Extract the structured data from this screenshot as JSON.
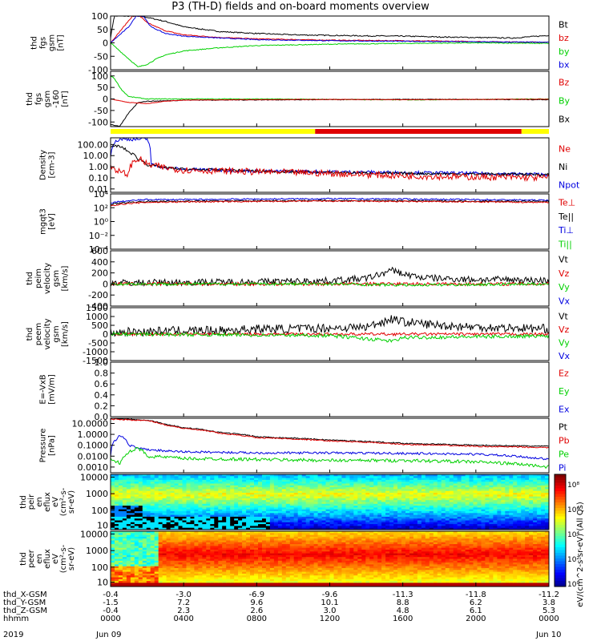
{
  "title": "P3 (TH-D) fields and on-board moments overview",
  "colors": {
    "black": "#000000",
    "red": "#e00000",
    "green": "#00d000",
    "blue": "#0000e0",
    "yellow": "#ffff00",
    "gray": "#808080"
  },
  "chart_data": [
    {
      "type": "line",
      "id": "fgs",
      "ylabel": [
        "thd",
        "fgs",
        "gsm",
        "[nT]"
      ],
      "ylim": [
        -100,
        100
      ],
      "ticks": [
        "100",
        "50",
        "0",
        "-50",
        "-100"
      ],
      "legend": [
        {
          "name": "Bt",
          "color": "black"
        },
        {
          "name": "bz",
          "color": "red"
        },
        {
          "name": "by",
          "color": "green"
        },
        {
          "name": "bx",
          "color": "blue"
        }
      ],
      "series": [
        {
          "name": "Bt",
          "color": "black",
          "t": [
            0,
            0.2,
            0.5,
            0.8,
            1.2,
            1.6,
            2.0,
            3.0,
            4.0,
            6.0,
            8.0,
            10.0,
            12.0,
            14.0,
            16.0,
            18.0,
            20.0,
            22.0,
            24.0
          ],
          "v": [
            20,
            100,
            100,
            100,
            100,
            100,
            95,
            80,
            60,
            42,
            35,
            30,
            28,
            26,
            25,
            22,
            20,
            18,
            28
          ],
          "noise": 2
        },
        {
          "name": "bz",
          "color": "red",
          "t": [
            0,
            1.2,
            1.6,
            2.0,
            3.0,
            4.0,
            6.0,
            8.0,
            12.0,
            16.0,
            20.0,
            24.0
          ],
          "v": [
            0,
            100,
            100,
            75,
            45,
            30,
            20,
            15,
            10,
            8,
            5,
            2
          ],
          "noise": 1.5
        },
        {
          "name": "by",
          "color": "green",
          "t": [
            0,
            1.5,
            2.0,
            2.5,
            3.0,
            4.0,
            6.0,
            8.0,
            12.0,
            16.0,
            20.0,
            24.0
          ],
          "v": [
            0,
            -90,
            -80,
            -60,
            -45,
            -30,
            -18,
            -10,
            -5,
            -2,
            0,
            -2
          ],
          "noise": 1.5
        },
        {
          "name": "bx",
          "color": "blue",
          "t": [
            0,
            1.0,
            1.4,
            1.8,
            2.2,
            3.0,
            4.0,
            6.0,
            8.0,
            12.0,
            16.0,
            20.0,
            24.0
          ],
          "v": [
            0,
            60,
            100,
            100,
            60,
            35,
            25,
            18,
            12,
            8,
            6,
            4,
            2
          ],
          "noise": 1.5
        }
      ]
    },
    {
      "type": "line",
      "id": "fgs-dsl",
      "ylabel": [
        "thd",
        "fgs",
        "gsm",
        "-160",
        "[nT]"
      ],
      "ylim": [
        -120,
        120
      ],
      "ticks": [
        "100",
        "50",
        "0",
        "-50",
        "-100"
      ],
      "tickvals": [
        100,
        50,
        0,
        -50,
        -100
      ],
      "legend": [
        {
          "name": "Bz",
          "color": "red"
        },
        {
          "name": "By",
          "color": "green"
        },
        {
          "name": "Bx",
          "color": "black"
        }
      ],
      "series": [
        {
          "name": "By",
          "color": "green",
          "t": [
            0,
            0.2,
            0.6,
            1.0,
            2.0,
            4.0,
            8.0,
            12.0,
            16.0,
            20.0,
            24.0
          ],
          "v": [
            100,
            90,
            40,
            10,
            0,
            0,
            0,
            -2,
            -4,
            -2,
            0
          ],
          "noise": 1.5
        },
        {
          "name": "Bx",
          "color": "black",
          "t": [
            0,
            0.5,
            1.0,
            1.5,
            2.0,
            3.0,
            4.0,
            8.0,
            12.0,
            16.0,
            20.0,
            24.0
          ],
          "v": [
            -110,
            -120,
            -60,
            -15,
            -10,
            -8,
            -5,
            -4,
            -3,
            -2,
            -2,
            -3
          ],
          "noise": 1.5
        },
        {
          "name": "Bz",
          "color": "red",
          "t": [
            0,
            1.0,
            2.0,
            3.0,
            4.0,
            8.0,
            12.0,
            16.0,
            20.0,
            24.0
          ],
          "v": [
            0,
            -15,
            -20,
            -10,
            -5,
            -3,
            -2,
            -3,
            -2,
            -1
          ],
          "noise": 1
        }
      ]
    },
    {
      "type": "line",
      "id": "density",
      "ylabel": [
        "Density",
        "[cm-3]"
      ],
      "log": true,
      "ylim": [
        0.005,
        400
      ],
      "ticks": [
        "100.00",
        "10.00",
        "1.00",
        "0.10",
        "0.01"
      ],
      "tickvals": [
        100,
        10,
        1,
        0.1,
        0.01
      ],
      "legend": [
        {
          "name": "Ne",
          "color": "red"
        },
        {
          "name": "Ni",
          "color": "black"
        },
        {
          "name": "Npot",
          "color": "blue"
        }
      ],
      "series": [
        {
          "name": "Npot",
          "color": "blue",
          "t": [
            0,
            0.5,
            1.5,
            2.0,
            2.2,
            3.0,
            4.0,
            8.0,
            12.0,
            16.0,
            20.0,
            24.0
          ],
          "v": [
            10,
            300,
            300,
            300,
            1.5,
            0.8,
            0.6,
            0.4,
            0.35,
            0.3,
            0.25,
            0.2
          ],
          "noise": 0.15
        },
        {
          "name": "Ni",
          "color": "black",
          "t": [
            0,
            0.3,
            1.0,
            1.5,
            2.0,
            3.0,
            4.0,
            8.0,
            12.0,
            16.0,
            20.0,
            24.0
          ],
          "v": [
            50,
            80,
            20,
            5,
            1.5,
            0.8,
            0.6,
            0.4,
            0.3,
            0.25,
            0.22,
            0.2
          ],
          "noise": 0.12
        },
        {
          "name": "Ne",
          "color": "red",
          "t": [
            0,
            0.5,
            1.0,
            1.5,
            2.0,
            3.0,
            4.0,
            8.0,
            12.0,
            16.0,
            20.0,
            24.0
          ],
          "v": [
            1,
            0.3,
            0.2,
            5,
            1.5,
            0.8,
            0.5,
            0.35,
            0.25,
            0.15,
            0.12,
            0.1
          ],
          "noise": 0.3
        }
      ]
    },
    {
      "type": "line",
      "id": "temp",
      "ylabel": [
        "mgqt3",
        "[eV]"
      ],
      "log": true,
      "ylim": [
        0.0001,
        10000
      ],
      "ticks": [
        "10⁴",
        "10²",
        "10⁰",
        "10⁻²",
        "10⁻⁴"
      ],
      "tickvals": [
        10000,
        100,
        1,
        0.01,
        0.0001
      ],
      "legend": [
        {
          "name": "Te⊥",
          "color": "red"
        },
        {
          "name": "Te||",
          "color": "black"
        },
        {
          "name": "Ti⊥",
          "color": "blue"
        },
        {
          "name": "Ti||",
          "color": "green"
        }
      ],
      "series": [
        {
          "name": "Ti⊥",
          "color": "blue",
          "t": [
            0,
            1.0,
            2.0,
            4.0,
            8.0,
            12.0,
            16.0,
            20.0,
            24.0
          ],
          "v": [
            500,
            1000,
            1500,
            1500,
            1800,
            2000,
            1800,
            1500,
            1200
          ],
          "noise": 0.1
        },
        {
          "name": "Te||",
          "color": "black",
          "t": [
            0,
            1.0,
            2.0,
            4.0,
            8.0,
            12.0,
            16.0,
            20.0,
            24.0
          ],
          "v": [
            300,
            600,
            800,
            900,
            1000,
            1100,
            1000,
            900,
            800
          ],
          "noise": 0.1
        },
        {
          "name": "Te⊥",
          "color": "red",
          "t": [
            0,
            1.0,
            2.0,
            4.0,
            8.0,
            12.0,
            16.0,
            20.0,
            24.0
          ],
          "v": [
            200,
            400,
            600,
            700,
            800,
            900,
            800,
            700,
            600
          ],
          "noise": 0.1
        }
      ]
    },
    {
      "type": "line",
      "id": "peim-velocity",
      "ylabel": [
        "thd",
        "peim",
        "velocity",
        "gsm",
        "[km/s]"
      ],
      "ylim": [
        -400,
        600
      ],
      "ticks": [
        "600",
        "400",
        "200",
        "0",
        "-200",
        "-400"
      ],
      "tickvals": [
        600,
        400,
        200,
        0,
        -200,
        -400
      ],
      "legend": [
        {
          "name": "Vt",
          "color": "black"
        },
        {
          "name": "Vz",
          "color": "red"
        },
        {
          "name": "Vy",
          "color": "green"
        },
        {
          "name": "Vx",
          "color": "blue"
        }
      ],
      "series": [
        {
          "name": "Vt",
          "color": "black",
          "t": [
            0,
            4.0,
            8.0,
            12.0,
            14.0,
            15.5,
            16.0,
            17.0,
            18.0,
            20.0,
            22.0,
            24.0
          ],
          "v": [
            20,
            30,
            40,
            60,
            100,
            250,
            180,
            120,
            100,
            80,
            80,
            60
          ],
          "noise": 60
        },
        {
          "name": "Vz",
          "color": "red",
          "t": [
            0,
            4.0,
            8.0,
            12.0,
            16.0,
            20.0,
            24.0
          ],
          "v": [
            0,
            0,
            0,
            0,
            0,
            0,
            0
          ],
          "noise": 30
        },
        {
          "name": "Vy",
          "color": "green",
          "t": [
            0,
            4.0,
            8.0,
            12.0,
            16.0,
            20.0,
            24.0
          ],
          "v": [
            0,
            0,
            0,
            0,
            -20,
            -10,
            0
          ],
          "noise": 25
        }
      ]
    },
    {
      "type": "line",
      "id": "peem-velocity",
      "ylabel": [
        "thd",
        "peem",
        "velocity",
        "gsm",
        "[km/s]"
      ],
      "ylim": [
        -1500,
        1500
      ],
      "ticks": [
        "1500",
        "1000",
        "500",
        "0",
        "-500",
        "-1000",
        "-1500"
      ],
      "tickvals": [
        1500,
        1000,
        500,
        0,
        -500,
        -1000,
        -1500
      ],
      "legend": [
        {
          "name": "Vt",
          "color": "black"
        },
        {
          "name": "Vz",
          "color": "red"
        },
        {
          "name": "Vy",
          "color": "green"
        },
        {
          "name": "Vx",
          "color": "blue"
        }
      ],
      "series": [
        {
          "name": "Vt",
          "color": "black",
          "t": [
            0,
            2.0,
            4.0,
            6.0,
            8.0,
            10.0,
            12.0,
            14.0,
            15.5,
            16.0,
            18.0,
            20.0,
            22.0,
            24.0
          ],
          "v": [
            100,
            150,
            200,
            200,
            300,
            300,
            350,
            400,
            900,
            700,
            500,
            400,
            350,
            300
          ],
          "noise": 250
        },
        {
          "name": "Vz",
          "color": "red",
          "t": [
            0,
            4.0,
            8.0,
            12.0,
            16.0,
            20.0,
            24.0
          ],
          "v": [
            0,
            0,
            0,
            0,
            0,
            0,
            0
          ],
          "noise": 80
        },
        {
          "name": "Vy",
          "color": "green",
          "t": [
            0,
            4.0,
            8.0,
            12.0,
            15.5,
            16.0,
            20.0,
            24.0
          ],
          "v": [
            0,
            -20,
            -50,
            -80,
            -400,
            -200,
            -150,
            -100
          ],
          "noise": 100
        }
      ]
    },
    {
      "type": "line",
      "id": "efield",
      "ylabel": [
        "E=-VxB",
        "[mV/m]"
      ],
      "ylim": [
        0,
        1
      ],
      "ticks": [
        "1.0",
        "0.8",
        "0.6",
        "0.4",
        "0.2",
        "0.0"
      ],
      "tickvals": [
        1,
        0.8,
        0.6,
        0.4,
        0.2,
        0
      ],
      "legend": [
        {
          "name": "Ez",
          "color": "red"
        },
        {
          "name": "Ey",
          "color": "green"
        },
        {
          "name": "Ex",
          "color": "blue"
        }
      ],
      "series": []
    },
    {
      "type": "line",
      "id": "pressure",
      "ylabel": [
        "Pressure",
        "[nPa]"
      ],
      "log": true,
      "ylim": [
        0.0003,
        30
      ],
      "ticks": [
        "10.0000",
        "1.0000",
        "0.1000",
        "0.0100",
        "0.0010"
      ],
      "tickvals": [
        10,
        1,
        0.1,
        0.01,
        0.001
      ],
      "legend": [
        {
          "name": "Pt",
          "color": "black"
        },
        {
          "name": "Pb",
          "color": "red"
        },
        {
          "name": "Pe",
          "color": "green"
        },
        {
          "name": "Pi",
          "color": "blue"
        }
      ],
      "series": [
        {
          "name": "Pt",
          "color": "black",
          "t": [
            0,
            2.0,
            3.0,
            4.0,
            6.0,
            8.0,
            12.0,
            16.0,
            20.0,
            24.0
          ],
          "v": [
            30,
            20,
            8,
            4,
            1.5,
            0.6,
            0.3,
            0.15,
            0.1,
            0.08
          ],
          "noise": 0.05
        },
        {
          "name": "Pb",
          "color": "red",
          "t": [
            0,
            2.0,
            3.0,
            4.0,
            6.0,
            8.0,
            12.0,
            16.0,
            20.0,
            24.0
          ],
          "v": [
            25,
            18,
            7,
            3.5,
            1.2,
            0.5,
            0.25,
            0.12,
            0.08,
            0.06
          ],
          "noise": 0.05
        },
        {
          "name": "Pi",
          "color": "blue",
          "t": [
            0,
            0.3,
            0.5,
            1.0,
            1.5,
            2.0,
            3.0,
            4.0,
            8.0,
            12.0,
            16.0,
            20.0,
            24.0
          ],
          "v": [
            0.01,
            0.3,
            0.8,
            0.1,
            0.05,
            0.04,
            0.03,
            0.025,
            0.02,
            0.02,
            0.018,
            0.015,
            0.005
          ],
          "noise": 0.1
        },
        {
          "name": "Pe",
          "color": "green",
          "t": [
            0,
            0.5,
            1.0,
            1.5,
            2.0,
            3.0,
            4.0,
            8.0,
            12.0,
            16.0,
            20.0,
            24.0
          ],
          "v": [
            0.005,
            0.002,
            0.02,
            0.05,
            0.01,
            0.008,
            0.006,
            0.005,
            0.004,
            0.004,
            0.003,
            0.001
          ],
          "noise": 0.15
        }
      ]
    }
  ],
  "spectrograms": [
    {
      "id": "peir-en-eflux",
      "ylabel": [
        "thd",
        "peir",
        "en",
        "eflux",
        "eV",
        "(cm²-s-",
        "sr-eV)"
      ],
      "ticks": [
        "10000",
        "1000",
        "100",
        "10"
      ]
    },
    {
      "id": "peer-en-eflux",
      "ylabel": [
        "thd",
        "peer",
        "en",
        "eflux",
        "eV",
        "(cm²-s-",
        "sr-eV)"
      ],
      "ticks": [
        "10000",
        "1000",
        "100",
        "10"
      ]
    }
  ],
  "colorbar": {
    "title": "eV/(cm^2-s-sr-eV) (All Qs)",
    "ticks": [
      "10⁸",
      "10⁶",
      "10⁴",
      "10²",
      "10⁰"
    ]
  },
  "xaxis": {
    "rows": [
      {
        "label": "thd_X-GSM",
        "values": [
          "-0.4",
          "-3.0",
          "-6.9",
          "-9.6",
          "-11.3",
          "-11.8",
          "-11.2"
        ]
      },
      {
        "label": "thd_Y-GSM",
        "values": [
          "-1.5",
          "7.2",
          "9.6",
          "10.1",
          "8.8",
          "6.2",
          "3.8"
        ]
      },
      {
        "label": "thd_Z-GSM",
        "values": [
          "-0.4",
          "2.3",
          "2.6",
          "3.0",
          "4.8",
          "6.1",
          "5.3"
        ]
      },
      {
        "label": "hhmm",
        "values": [
          "0000",
          "0400",
          "0800",
          "1200",
          "1600",
          "2000",
          "0000"
        ]
      }
    ],
    "year": "2019",
    "date_start": "Jun 09",
    "date_end": "Jun 10"
  }
}
